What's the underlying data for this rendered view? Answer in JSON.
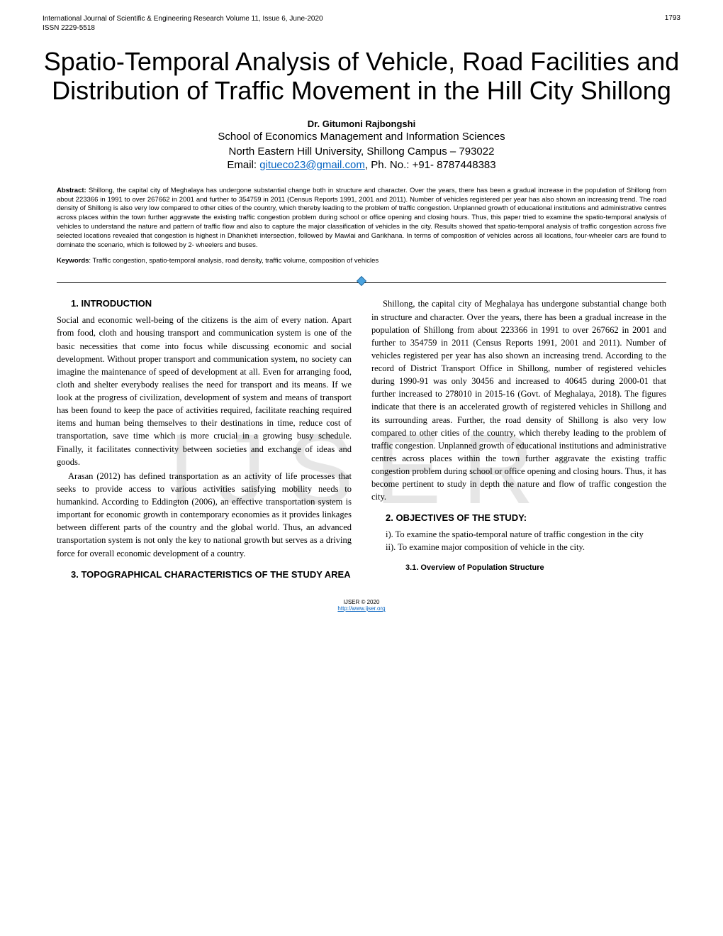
{
  "header": {
    "journal": "International Journal of Scientific & Engineering Research Volume 11, Issue 6, June-2020",
    "issn": "ISSN 2229-5518",
    "page_number": "1793"
  },
  "title": "Spatio-Temporal Analysis of Vehicle, Road Facilities and Distribution of Traffic Movement in the Hill City Shillong",
  "author": {
    "name": "Dr. Gitumoni Rajbongshi",
    "affiliation_line1": "School of Economics Management and Information Sciences",
    "affiliation_line2": "North Eastern Hill University, Shillong Campus – 793022",
    "email_prefix": "Email: ",
    "email": "gitueco23@gmail.com",
    "phone": ", Ph. No.: +91- 8787448383"
  },
  "abstract_label": "Abstract: ",
  "abstract_text": "Shillong, the capital city of Meghalaya has undergone substantial change both in structure and character. Over the years, there has been a gradual increase in the population of Shillong from about 223366 in 1991 to over 267662 in 2001 and further to 354759 in 2011 (Census Reports 1991, 2001 and 2011). Number of vehicles registered per year has also shown an increasing trend. The road density of Shillong is also very low compared to other cities of the country, which thereby leading to the problem of traffic congestion. Unplanned growth of educational institutions and administrative centres across places within the town further aggravate the existing traffic congestion problem during school or office opening and closing hours. Thus, this paper tried to examine the spatio-temporal analysis of vehicles to understand the nature and pattern of traffic flow and also to capture the major classification of vehicles in the city. Results showed that spatio-temporal analysis of traffic congestion across five selected locations revealed that congestion is highest in Dhankheti intersection, followed by Mawlai and Garikhana. In terms of composition of vehicles across all locations, four-wheeler cars are found to dominate the scenario, which is followed by 2- wheelers and buses.",
  "keywords_label": "Keywords",
  "keywords_text": ": Traffic congestion, spatio-temporal analysis, road density, traffic volume, composition of vehicles",
  "sections": {
    "s1_heading": "1.  INTRODUCTION",
    "s1_p1": "Social and economic well-being of the citizens is the aim of every nation. Apart from food, cloth and housing transport and communication system is one of the basic necessities that come into focus while discussing economic and social development. Without proper transport and communication system, no society can imagine the maintenance of speed of development at all. Even for arranging food, cloth and shelter everybody realises the need for transport and its means. If we look at the progress of civilization, development of system and means of transport has been found to keep the pace of activities required, facilitate reaching required items and human being themselves to their destinations in time, reduce cost of transportation, save time which is more crucial in a growing busy schedule. Finally, it facilitates connectivity between societies and exchange of ideas and goods.",
    "s1_p2": "Arasan (2012) has defined transportation as an activity of life processes that seeks to provide access to various activities satisfying mobility needs to humankind. According to Eddington (2006), an effective transportation system is important for economic growth in contemporary economies as it provides linkages between different parts of the country and the global world. Thus, an advanced transportation system is not only the key to national growth but serves as a driving force for overall economic development of a country.",
    "s3_heading": "3.  TOPOGRAPHICAL CHARACTERISTICS OF THE STUDY AREA",
    "col2_p1": "Shillong, the capital city of Meghalaya has undergone substantial change both in structure and character. Over the years, there has been a gradual increase in the population of Shillong from about 223366 in 1991 to over 267662 in 2001 and further to 354759 in 2011 (Census Reports 1991, 2001 and 2011). Number of vehicles registered per year has also shown an increasing trend. According to the record of District Transport Office in Shillong, number of registered vehicles during 1990-91 was only 30456 and increased to 40645 during 2000-01 that further increased to 278010 in 2015-16 (Govt. of Meghalaya, 2018). The figures indicate that there is an accelerated growth of registered vehicles in Shillong and its surrounding areas. Further, the road density of Shillong is also very low compared to other cities of the country, which thereby leading to the problem of traffic congestion. Unplanned growth of educational institutions and administrative centres across places within the town further aggravate the existing traffic congestion problem during school or office opening and closing hours. Thus, it has become pertinent to study in depth the nature and flow of traffic congestion the city.",
    "s2_heading": "2.  OBJECTIVES OF THE STUDY:",
    "s2_obj1": "i). To examine the spatio-temporal nature of traffic congestion in the city",
    "s2_obj2": "ii). To examine major composition of vehicle in the city.",
    "s3_1_heading": "3.1.        Overview of Population Structure"
  },
  "footer": {
    "copyright": "IJSER © 2020",
    "url": "http://www.ijser.org"
  },
  "watermark": "IJSER",
  "colors": {
    "link": "#0563c1",
    "diamond_fill": "#4aa3df",
    "diamond_border": "#2a6fa3",
    "watermark": "#e6e6e6"
  }
}
